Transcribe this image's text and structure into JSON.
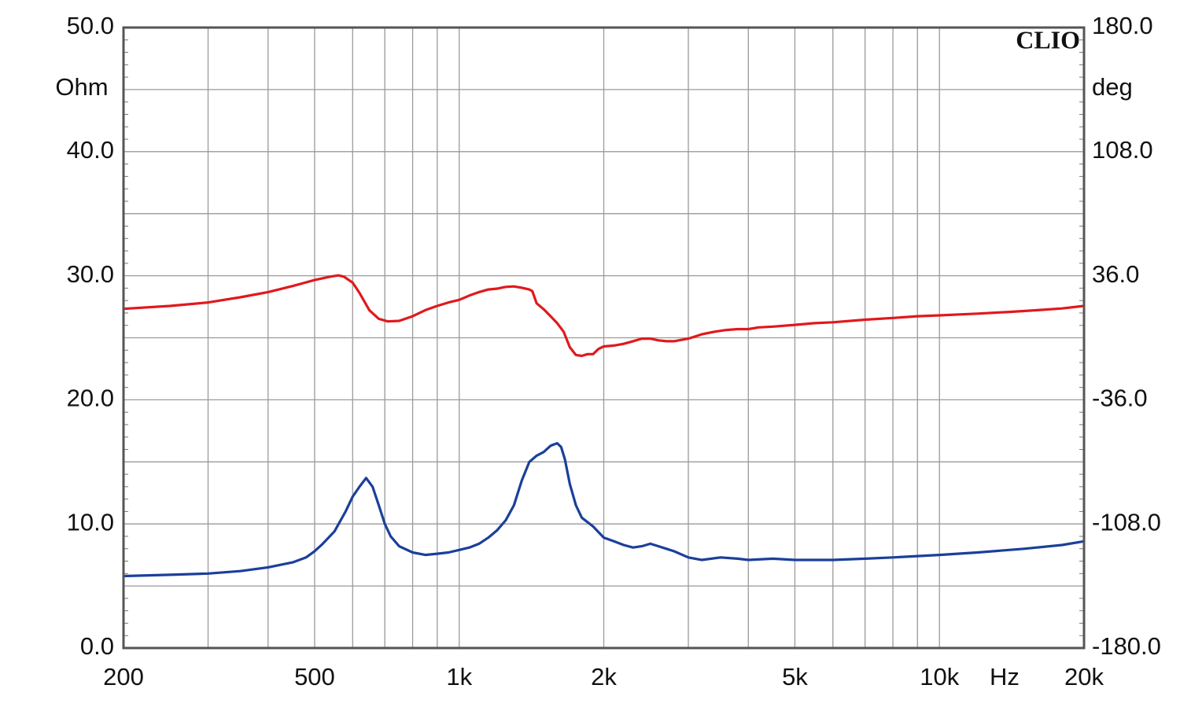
{
  "brand": "CLIO",
  "chart_data": {
    "type": "line",
    "x_unit_label": "Hz",
    "y_left_unit_label": "Ohm",
    "y_right_unit_label": "deg",
    "x_scale": "log",
    "xlim": [
      200,
      20000
    ],
    "ylim_left": [
      0,
      50
    ],
    "ylim_right": [
      -180,
      180
    ],
    "grid": true,
    "x_ticks": [
      {
        "value": 200,
        "label": "200"
      },
      {
        "value": 500,
        "label": "500"
      },
      {
        "value": 1000,
        "label": "1k"
      },
      {
        "value": 2000,
        "label": "2k"
      },
      {
        "value": 5000,
        "label": "5k"
      },
      {
        "value": 10000,
        "label": "10k"
      },
      {
        "value": 20000,
        "label": "20k"
      }
    ],
    "y_left_ticks": [
      {
        "value": 0,
        "label": "0.0"
      },
      {
        "value": 10,
        "label": "10.0"
      },
      {
        "value": 20,
        "label": "20.0"
      },
      {
        "value": 30,
        "label": "30.0"
      },
      {
        "value": 40,
        "label": "40.0"
      },
      {
        "value": 50,
        "label": "50.0"
      }
    ],
    "y_right_ticks": [
      {
        "value": -180,
        "label": "-180.0"
      },
      {
        "value": -108,
        "label": "-108.0"
      },
      {
        "value": -36,
        "label": "-36.0"
      },
      {
        "value": 36,
        "label": "36.0"
      },
      {
        "value": 108,
        "label": "108.0"
      },
      {
        "value": 180,
        "label": "180.0"
      }
    ],
    "series": [
      {
        "color": "#e0191c",
        "axis": "right",
        "points": [
          [
            200,
            16.8
          ],
          [
            250,
            18.5
          ],
          [
            300,
            20.5
          ],
          [
            350,
            23.5
          ],
          [
            400,
            26.5
          ],
          [
            450,
            30
          ],
          [
            500,
            33.5
          ],
          [
            540,
            35.5
          ],
          [
            560,
            36.2
          ],
          [
            575,
            35.5
          ],
          [
            600,
            32
          ],
          [
            620,
            26
          ],
          [
            650,
            16
          ],
          [
            680,
            11
          ],
          [
            710,
            9.5
          ],
          [
            750,
            9.8
          ],
          [
            800,
            12.5
          ],
          [
            850,
            16
          ],
          [
            900,
            18.5
          ],
          [
            950,
            20.5
          ],
          [
            1000,
            22
          ],
          [
            1050,
            24.5
          ],
          [
            1100,
            26.5
          ],
          [
            1150,
            28
          ],
          [
            1200,
            28.5
          ],
          [
            1250,
            29.5
          ],
          [
            1300,
            29.8
          ],
          [
            1350,
            29
          ],
          [
            1400,
            28
          ],
          [
            1420,
            27
          ],
          [
            1450,
            20
          ],
          [
            1500,
            16.5
          ],
          [
            1550,
            12.5
          ],
          [
            1600,
            8.5
          ],
          [
            1650,
            3.5
          ],
          [
            1700,
            -5.5
          ],
          [
            1750,
            -10
          ],
          [
            1800,
            -10.5
          ],
          [
            1850,
            -9.5
          ],
          [
            1900,
            -9.5
          ],
          [
            1950,
            -6.5
          ],
          [
            2000,
            -5
          ],
          [
            2100,
            -4.5
          ],
          [
            2200,
            -3.5
          ],
          [
            2300,
            -2
          ],
          [
            2400,
            -0.5
          ],
          [
            2500,
            -0.5
          ],
          [
            2600,
            -1.5
          ],
          [
            2700,
            -2
          ],
          [
            2800,
            -2
          ],
          [
            3000,
            -0.5
          ],
          [
            3200,
            2
          ],
          [
            3400,
            3.5
          ],
          [
            3600,
            4.5
          ],
          [
            3800,
            5
          ],
          [
            4000,
            5
          ],
          [
            4200,
            6
          ],
          [
            4500,
            6.5
          ],
          [
            5000,
            7.5
          ],
          [
            5500,
            8.5
          ],
          [
            6000,
            9
          ],
          [
            7000,
            10.5
          ],
          [
            8000,
            11.5
          ],
          [
            9000,
            12.5
          ],
          [
            10000,
            13
          ],
          [
            12000,
            14
          ],
          [
            14000,
            15
          ],
          [
            16000,
            16
          ],
          [
            18000,
            17
          ],
          [
            20000,
            18.5
          ]
        ]
      },
      {
        "color": "#1b3f9a",
        "axis": "left",
        "points": [
          [
            200,
            5.8
          ],
          [
            250,
            5.9
          ],
          [
            300,
            6.0
          ],
          [
            350,
            6.2
          ],
          [
            400,
            6.5
          ],
          [
            450,
            6.9
          ],
          [
            480,
            7.3
          ],
          [
            500,
            7.8
          ],
          [
            520,
            8.4
          ],
          [
            550,
            9.4
          ],
          [
            580,
            11
          ],
          [
            600,
            12.2
          ],
          [
            620,
            13
          ],
          [
            640,
            13.7
          ],
          [
            660,
            13
          ],
          [
            680,
            11.5
          ],
          [
            700,
            10
          ],
          [
            720,
            9.0
          ],
          [
            750,
            8.2
          ],
          [
            800,
            7.7
          ],
          [
            850,
            7.5
          ],
          [
            900,
            7.6
          ],
          [
            950,
            7.7
          ],
          [
            1000,
            7.9
          ],
          [
            1050,
            8.1
          ],
          [
            1100,
            8.4
          ],
          [
            1150,
            8.9
          ],
          [
            1200,
            9.5
          ],
          [
            1250,
            10.3
          ],
          [
            1300,
            11.5
          ],
          [
            1350,
            13.5
          ],
          [
            1400,
            15.0
          ],
          [
            1450,
            15.5
          ],
          [
            1500,
            15.8
          ],
          [
            1550,
            16.3
          ],
          [
            1600,
            16.5
          ],
          [
            1630,
            16.2
          ],
          [
            1660,
            15.2
          ],
          [
            1700,
            13.2
          ],
          [
            1750,
            11.5
          ],
          [
            1800,
            10.5
          ],
          [
            1900,
            9.8
          ],
          [
            2000,
            8.9
          ],
          [
            2100,
            8.6
          ],
          [
            2200,
            8.3
          ],
          [
            2300,
            8.1
          ],
          [
            2400,
            8.2
          ],
          [
            2500,
            8.4
          ],
          [
            2600,
            8.2
          ],
          [
            2700,
            8.0
          ],
          [
            2800,
            7.8
          ],
          [
            3000,
            7.3
          ],
          [
            3200,
            7.1
          ],
          [
            3500,
            7.3
          ],
          [
            3800,
            7.2
          ],
          [
            4000,
            7.1
          ],
          [
            4500,
            7.2
          ],
          [
            5000,
            7.1
          ],
          [
            6000,
            7.1
          ],
          [
            7000,
            7.2
          ],
          [
            8000,
            7.3
          ],
          [
            10000,
            7.5
          ],
          [
            12000,
            7.7
          ],
          [
            15000,
            8.0
          ],
          [
            18000,
            8.3
          ],
          [
            20000,
            8.6
          ]
        ]
      }
    ]
  }
}
